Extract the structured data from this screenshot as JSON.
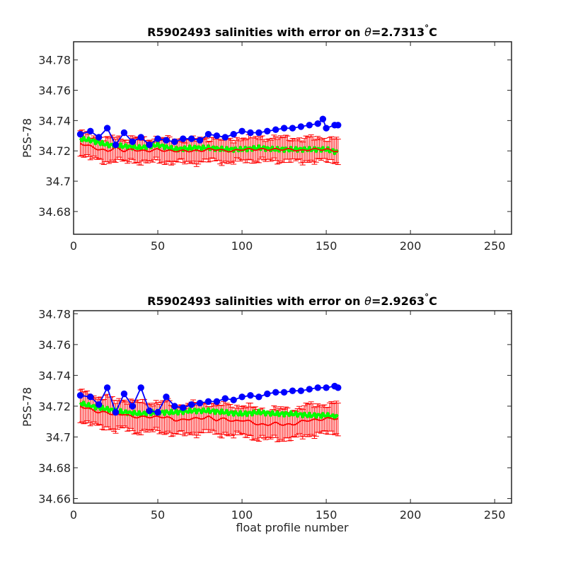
{
  "chart_data": [
    {
      "type": "line",
      "title_prefix": "R5902493 salinities with error on ",
      "title_theta": "θ",
      "title_value": "=2.7313",
      "title_degree": "°",
      "title_unit": "C",
      "xlabel": "",
      "ylabel": "PSS-78",
      "xlim": [
        0,
        260
      ],
      "ylim": [
        34.665,
        34.792
      ],
      "xticks": [
        0,
        50,
        100,
        150,
        200,
        250
      ],
      "yticks": [
        34.68,
        34.7,
        34.72,
        34.74,
        34.76,
        34.78
      ],
      "ytick_labels": [
        "34.68",
        "34.7",
        "34.72",
        "34.74",
        "34.76",
        "34.78"
      ],
      "x_start": 4,
      "x_end": 157,
      "float_salinity": {
        "color": "#0000ff",
        "x": [
          4,
          10,
          15,
          20,
          25,
          30,
          35,
          40,
          45,
          50,
          55,
          60,
          65,
          70,
          75,
          80,
          85,
          90,
          95,
          100,
          105,
          110,
          115,
          120,
          125,
          130,
          135,
          140,
          145,
          148,
          150,
          155,
          157
        ],
        "y": [
          34.731,
          34.733,
          34.729,
          34.735,
          34.724,
          34.732,
          34.726,
          34.729,
          34.724,
          34.728,
          34.727,
          34.726,
          34.728,
          34.728,
          34.727,
          34.731,
          34.73,
          34.729,
          34.731,
          34.733,
          34.732,
          34.732,
          34.733,
          34.734,
          34.735,
          34.735,
          34.736,
          34.737,
          34.738,
          34.741,
          34.735,
          34.737,
          34.737
        ]
      },
      "mapped_salinity": {
        "color": "#00ff00",
        "x": [
          4,
          10,
          20,
          30,
          40,
          50,
          60,
          70,
          80,
          90,
          100,
          110,
          120,
          130,
          140,
          150,
          157
        ],
        "y": [
          34.728,
          34.727,
          34.724,
          34.723,
          34.722,
          34.724,
          34.721,
          34.722,
          34.722,
          34.721,
          34.721,
          34.722,
          34.721,
          34.721,
          34.721,
          34.721,
          34.719
        ]
      },
      "calibrated_salinity": {
        "color": "#ff0000",
        "error_half_width": 0.0075,
        "x": [
          4,
          10,
          15,
          20,
          25,
          30,
          35,
          40,
          45,
          50,
          55,
          60,
          65,
          70,
          75,
          80,
          85,
          90,
          95,
          100,
          105,
          110,
          115,
          120,
          125,
          130,
          135,
          140,
          145,
          150,
          155,
          157
        ],
        "y": [
          34.725,
          34.723,
          34.721,
          34.72,
          34.722,
          34.72,
          34.721,
          34.72,
          34.72,
          34.721,
          34.72,
          34.72,
          34.72,
          34.72,
          34.72,
          34.721,
          34.721,
          34.72,
          34.72,
          34.721,
          34.721,
          34.721,
          34.721,
          34.721,
          34.721,
          34.721,
          34.72,
          34.721,
          34.721,
          34.721,
          34.72,
          34.72
        ]
      }
    },
    {
      "type": "line",
      "title_prefix": "R5902493 salinities with error on ",
      "title_theta": "θ",
      "title_value": "=2.9263",
      "title_degree": "°",
      "title_unit": "C",
      "xlabel": "float profile number",
      "ylabel": "PSS-78",
      "xlim": [
        0,
        260
      ],
      "ylim": [
        34.657,
        34.782
      ],
      "xticks": [
        0,
        50,
        100,
        150,
        200,
        250
      ],
      "yticks": [
        34.66,
        34.68,
        34.7,
        34.72,
        34.74,
        34.76,
        34.78
      ],
      "ytick_labels": [
        "34.66",
        "34.68",
        "34.7",
        "34.72",
        "34.74",
        "34.76",
        "34.78"
      ],
      "x_start": 4,
      "x_end": 157,
      "float_salinity": {
        "color": "#0000ff",
        "x": [
          4,
          10,
          15,
          20,
          25,
          30,
          35,
          40,
          45,
          50,
          55,
          60,
          65,
          70,
          75,
          80,
          85,
          90,
          95,
          100,
          105,
          110,
          115,
          120,
          125,
          130,
          135,
          140,
          145,
          150,
          155,
          157
        ],
        "y": [
          34.727,
          34.726,
          34.721,
          34.732,
          34.716,
          34.728,
          34.72,
          34.732,
          34.717,
          34.716,
          34.726,
          34.72,
          34.719,
          34.721,
          34.722,
          34.723,
          34.723,
          34.725,
          34.724,
          34.726,
          34.727,
          34.726,
          34.728,
          34.729,
          34.729,
          34.73,
          34.73,
          34.731,
          34.732,
          34.732,
          34.733,
          34.732
        ]
      },
      "mapped_salinity": {
        "color": "#00ff00",
        "x": [
          4,
          10,
          20,
          30,
          40,
          50,
          60,
          70,
          80,
          90,
          100,
          110,
          120,
          130,
          140,
          150,
          157
        ],
        "y": [
          34.722,
          34.72,
          34.718,
          34.716,
          34.715,
          34.716,
          34.716,
          34.717,
          34.717,
          34.716,
          34.715,
          34.716,
          34.715,
          34.715,
          34.714,
          34.714,
          34.713
        ]
      },
      "calibrated_salinity": {
        "color": "#ff0000",
        "error_half_width": 0.0095,
        "x": [
          4,
          10,
          15,
          20,
          25,
          30,
          35,
          40,
          45,
          50,
          55,
          60,
          65,
          70,
          75,
          80,
          85,
          90,
          95,
          100,
          105,
          110,
          115,
          120,
          125,
          130,
          135,
          140,
          145,
          150,
          155,
          157
        ],
        "y": [
          34.72,
          34.718,
          34.716,
          34.716,
          34.714,
          34.715,
          34.713,
          34.713,
          34.713,
          34.713,
          34.713,
          34.711,
          34.711,
          34.712,
          34.712,
          34.713,
          34.711,
          34.712,
          34.71,
          34.711,
          34.71,
          34.708,
          34.708,
          34.709,
          34.708,
          34.708,
          34.71,
          34.711,
          34.711,
          34.712,
          34.712,
          34.712
        ]
      }
    }
  ]
}
